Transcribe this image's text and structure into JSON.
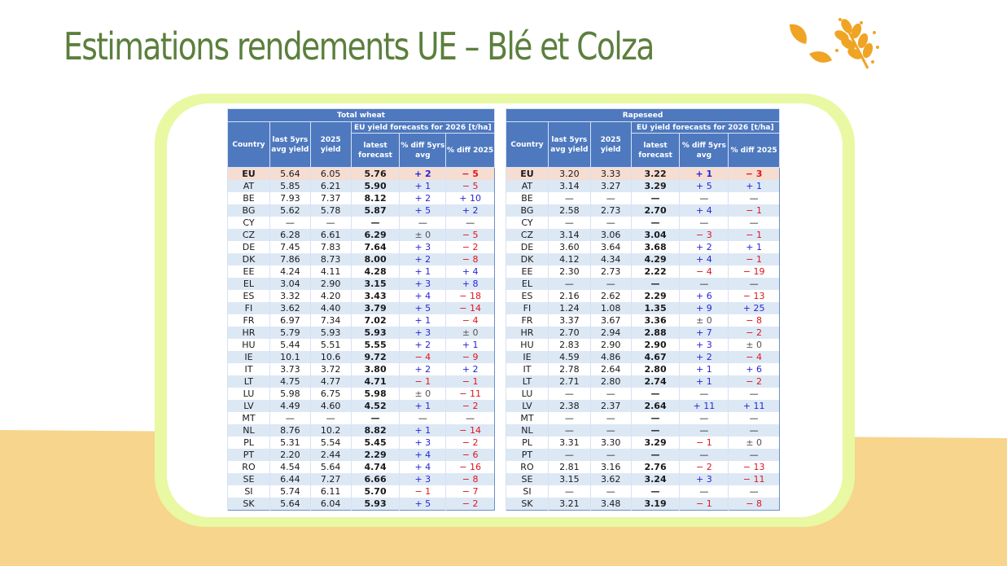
{
  "slide": {
    "title": "Estimations rendements UE – Blé et Colza"
  },
  "colors": {
    "title_green": "#5b7f3d",
    "header_blue": "#4e79bf",
    "row_stripe": "#dde8f5",
    "eu_row": "#f6ddd2",
    "positive": "#2525d8",
    "negative": "#e0141e",
    "frame": "#e9f8a2",
    "ground": "#f7d58c",
    "logo_orange": "#f0a425"
  },
  "icons": [
    "wheat-ear-icon",
    "leaf-icon"
  ],
  "headers": {
    "country": "Country",
    "last5": "last 5yrs avg yield",
    "y2025": "2025 yield",
    "group": "EU yield forecasts for 2026 [t/ha]",
    "latest": "latest forecast",
    "diff5": "% diff 5yrs avg",
    "diff2025": "% diff 2025"
  },
  "wheat": {
    "title": "Total wheat",
    "rows": [
      [
        "EU",
        "5.64",
        "6.05",
        "5.76",
        "+ 2",
        "− 5"
      ],
      [
        "AT",
        "5.85",
        "6.21",
        "5.90",
        "+ 1",
        "− 5"
      ],
      [
        "BE",
        "7.93",
        "7.37",
        "8.12",
        "+ 2",
        "+ 10"
      ],
      [
        "BG",
        "5.62",
        "5.78",
        "5.87",
        "+ 5",
        "+ 2"
      ],
      [
        "CY",
        "—",
        "—",
        "—",
        "—",
        "—"
      ],
      [
        "CZ",
        "6.28",
        "6.61",
        "6.29",
        "± 0",
        "− 5"
      ],
      [
        "DE",
        "7.45",
        "7.83",
        "7.64",
        "+ 3",
        "− 2"
      ],
      [
        "DK",
        "7.86",
        "8.73",
        "8.00",
        "+ 2",
        "− 8"
      ],
      [
        "EE",
        "4.24",
        "4.11",
        "4.28",
        "+ 1",
        "+ 4"
      ],
      [
        "EL",
        "3.04",
        "2.90",
        "3.15",
        "+ 3",
        "+ 8"
      ],
      [
        "ES",
        "3.32",
        "4.20",
        "3.43",
        "+ 4",
        "− 18"
      ],
      [
        "FI",
        "3.62",
        "4.40",
        "3.79",
        "+ 5",
        "− 14"
      ],
      [
        "FR",
        "6.97",
        "7.34",
        "7.02",
        "+ 1",
        "− 4"
      ],
      [
        "HR",
        "5.79",
        "5.93",
        "5.93",
        "+ 3",
        "± 0"
      ],
      [
        "HU",
        "5.44",
        "5.51",
        "5.55",
        "+ 2",
        "+ 1"
      ],
      [
        "IE",
        "10.1",
        "10.6",
        "9.72",
        "− 4",
        "− 9"
      ],
      [
        "IT",
        "3.73",
        "3.72",
        "3.80",
        "+ 2",
        "+ 2"
      ],
      [
        "LT",
        "4.75",
        "4.77",
        "4.71",
        "− 1",
        "− 1"
      ],
      [
        "LU",
        "5.98",
        "6.75",
        "5.98",
        "± 0",
        "− 11"
      ],
      [
        "LV",
        "4.49",
        "4.60",
        "4.52",
        "+ 1",
        "− 2"
      ],
      [
        "MT",
        "—",
        "—",
        "—",
        "—",
        "—"
      ],
      [
        "NL",
        "8.76",
        "10.2",
        "8.82",
        "+ 1",
        "− 14"
      ],
      [
        "PL",
        "5.31",
        "5.54",
        "5.45",
        "+ 3",
        "− 2"
      ],
      [
        "PT",
        "2.20",
        "2.44",
        "2.29",
        "+ 4",
        "− 6"
      ],
      [
        "RO",
        "4.54",
        "5.64",
        "4.74",
        "+ 4",
        "− 16"
      ],
      [
        "SE",
        "6.44",
        "7.27",
        "6.66",
        "+ 3",
        "− 8"
      ],
      [
        "SI",
        "5.74",
        "6.11",
        "5.70",
        "− 1",
        "− 7"
      ],
      [
        "SK",
        "5.64",
        "6.04",
        "5.93",
        "+ 5",
        "− 2"
      ]
    ]
  },
  "rapeseed": {
    "title": "Rapeseed",
    "rows": [
      [
        "EU",
        "3.20",
        "3.33",
        "3.22",
        "+ 1",
        "− 3"
      ],
      [
        "AT",
        "3.14",
        "3.27",
        "3.29",
        "+ 5",
        "+ 1"
      ],
      [
        "BE",
        "—",
        "—",
        "—",
        "—",
        "—"
      ],
      [
        "BG",
        "2.58",
        "2.73",
        "2.70",
        "+ 4",
        "− 1"
      ],
      [
        "CY",
        "—",
        "—",
        "—",
        "—",
        "—"
      ],
      [
        "CZ",
        "3.14",
        "3.06",
        "3.04",
        "− 3",
        "− 1"
      ],
      [
        "DE",
        "3.60",
        "3.64",
        "3.68",
        "+ 2",
        "+ 1"
      ],
      [
        "DK",
        "4.12",
        "4.34",
        "4.29",
        "+ 4",
        "− 1"
      ],
      [
        "EE",
        "2.30",
        "2.73",
        "2.22",
        "− 4",
        "− 19"
      ],
      [
        "EL",
        "—",
        "—",
        "—",
        "—",
        "—"
      ],
      [
        "ES",
        "2.16",
        "2.62",
        "2.29",
        "+ 6",
        "− 13"
      ],
      [
        "FI",
        "1.24",
        "1.08",
        "1.35",
        "+ 9",
        "+ 25"
      ],
      [
        "FR",
        "3.37",
        "3.67",
        "3.36",
        "± 0",
        "− 8"
      ],
      [
        "HR",
        "2.70",
        "2.94",
        "2.88",
        "+ 7",
        "− 2"
      ],
      [
        "HU",
        "2.83",
        "2.90",
        "2.90",
        "+ 3",
        "± 0"
      ],
      [
        "IE",
        "4.59",
        "4.86",
        "4.67",
        "+ 2",
        "− 4"
      ],
      [
        "IT",
        "2.78",
        "2.64",
        "2.80",
        "+ 1",
        "+ 6"
      ],
      [
        "LT",
        "2.71",
        "2.80",
        "2.74",
        "+ 1",
        "− 2"
      ],
      [
        "LU",
        "—",
        "—",
        "—",
        "—",
        "—"
      ],
      [
        "LV",
        "2.38",
        "2.37",
        "2.64",
        "+ 11",
        "+ 11"
      ],
      [
        "MT",
        "—",
        "—",
        "—",
        "—",
        "—"
      ],
      [
        "NL",
        "—",
        "—",
        "—",
        "—",
        "—"
      ],
      [
        "PL",
        "3.31",
        "3.30",
        "3.29",
        "− 1",
        "± 0"
      ],
      [
        "PT",
        "—",
        "—",
        "—",
        "—",
        "—"
      ],
      [
        "RO",
        "2.81",
        "3.16",
        "2.76",
        "− 2",
        "− 13"
      ],
      [
        "SE",
        "3.15",
        "3.62",
        "3.24",
        "+ 3",
        "− 11"
      ],
      [
        "SI",
        "—",
        "—",
        "—",
        "—",
        "—"
      ],
      [
        "SK",
        "3.21",
        "3.48",
        "3.19",
        "− 1",
        "− 8"
      ]
    ]
  }
}
